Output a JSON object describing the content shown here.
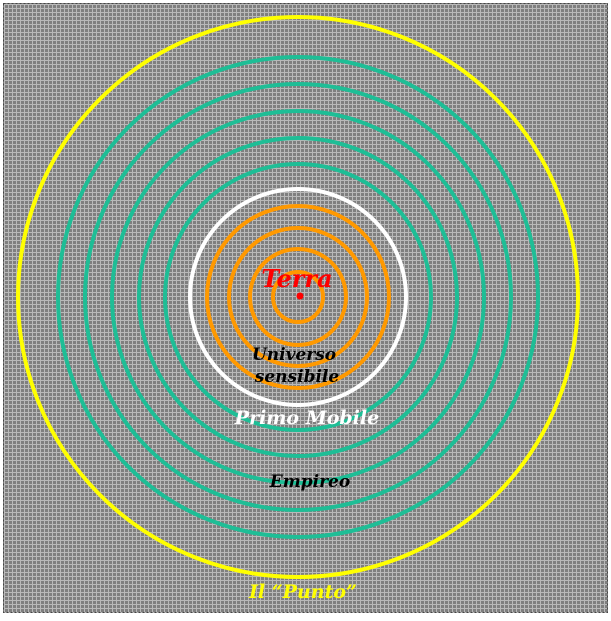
{
  "diagram": {
    "labels": {
      "center": "Terra",
      "orange_zone": "Universo\nsensibile",
      "white_ring": "Primo Mobile",
      "green_zone": "Empireo",
      "outer_ring": "Il “Punto”"
    },
    "colors": {
      "background": "#7f7f7f",
      "grid_line": "#b9b9b9",
      "outer_ring": "#ffff00",
      "green_rings": "#1ebe96",
      "white_ring": "#ffffff",
      "orange_rings": "#ff9900",
      "center_point": "#ff0000",
      "label_dark": "#000000",
      "label_white": "#ffffff",
      "label_yellow": "#ffff00",
      "label_red": "#ff0000"
    },
    "ring_counts": {
      "outer_ring": 1,
      "green_rings": 5,
      "white_ring": 1,
      "orange_rings": 4
    }
  }
}
